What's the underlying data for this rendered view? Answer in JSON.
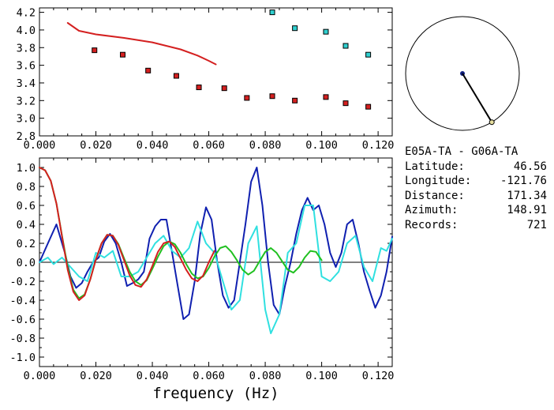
{
  "info": {
    "title": "E05A-TA - G06A-TA",
    "rows": [
      {
        "label": "Latitude:",
        "value": "46.56"
      },
      {
        "label": "Longitude:",
        "value": "-121.76"
      },
      {
        "label": "Distance:",
        "value": "171.34"
      },
      {
        "label": "Azimuth:",
        "value": "148.91"
      },
      {
        "label": "Records:",
        "value": "721"
      }
    ]
  },
  "compass": {
    "azimuth_deg": 148.91
  },
  "chart_data": [
    {
      "type": "scatter",
      "xlim": [
        0.0,
        0.125
      ],
      "ylim": [
        2.8,
        4.25
      ],
      "xticks": [
        "0.000",
        "0.020",
        "0.040",
        "0.060",
        "0.080",
        "0.100",
        "0.120"
      ],
      "yticks": [
        "2.8",
        "3.0",
        "3.2",
        "3.4",
        "3.6",
        "3.8",
        "4.0",
        "4.2"
      ],
      "series": [
        {
          "color": "#d42020",
          "kind": "points",
          "x": [
            0.0195,
            0.0295,
            0.0385,
            0.0485,
            0.0565,
            0.0655,
            0.0735,
            0.0825,
            0.0905,
            0.1015,
            0.1085,
            0.1165
          ],
          "y": [
            3.77,
            3.72,
            3.54,
            3.48,
            3.35,
            3.34,
            3.23,
            3.25,
            3.2,
            3.24,
            3.17,
            3.13
          ]
        },
        {
          "color": "#30d0d0",
          "kind": "points",
          "x": [
            0.0825,
            0.0905,
            0.1015,
            0.1085,
            0.1165
          ],
          "y": [
            4.2,
            4.02,
            3.98,
            3.82,
            3.72
          ]
        },
        {
          "color": "#d42020",
          "kind": "line",
          "x": [
            0.01,
            0.014,
            0.02,
            0.03,
            0.04,
            0.05,
            0.056,
            0.06,
            0.0625
          ],
          "y": [
            4.08,
            3.99,
            3.95,
            3.91,
            3.86,
            3.78,
            3.71,
            3.65,
            3.61
          ]
        }
      ]
    },
    {
      "type": "line",
      "xlim": [
        0.0,
        0.125
      ],
      "ylim": [
        -1.1,
        1.1
      ],
      "xlabel": "frequency (Hz)",
      "xticks": [
        "0.000",
        "0.020",
        "0.040",
        "0.060",
        "0.080",
        "0.100",
        "0.120"
      ],
      "yticks": [
        "1.0",
        "0.8",
        "0.6",
        "0.4",
        "0.2",
        "0.0",
        "-0.2",
        "-0.4",
        "-0.6",
        "-0.8",
        "-1.0"
      ],
      "series": [
        {
          "color": "#1020b0",
          "x": [
            0.0,
            0.003,
            0.006,
            0.009,
            0.011,
            0.013,
            0.015,
            0.017,
            0.019,
            0.021,
            0.023,
            0.025,
            0.027,
            0.029,
            0.031,
            0.033,
            0.035,
            0.037,
            0.039,
            0.041,
            0.043,
            0.045,
            0.047,
            0.049,
            0.051,
            0.053,
            0.055,
            0.057,
            0.059,
            0.061,
            0.063,
            0.065,
            0.067,
            0.069,
            0.071,
            0.073,
            0.075,
            0.077,
            0.079,
            0.081,
            0.083,
            0.085,
            0.087,
            0.089,
            0.091,
            0.093,
            0.095,
            0.097,
            0.099,
            0.101,
            0.103,
            0.105,
            0.107,
            0.109,
            0.111,
            0.113,
            0.115,
            0.117,
            0.119,
            0.121,
            0.123,
            0.125
          ],
          "y": [
            0.0,
            0.2,
            0.4,
            0.1,
            -0.15,
            -0.27,
            -0.22,
            -0.1,
            0.0,
            0.05,
            0.22,
            0.3,
            0.2,
            0.0,
            -0.25,
            -0.22,
            -0.18,
            -0.1,
            0.25,
            0.38,
            0.45,
            0.45,
            0.1,
            -0.25,
            -0.6,
            -0.55,
            -0.2,
            0.3,
            0.58,
            0.45,
            0.0,
            -0.35,
            -0.48,
            -0.4,
            0.0,
            0.4,
            0.85,
            1.0,
            0.6,
            0.0,
            -0.45,
            -0.55,
            -0.25,
            0.0,
            0.3,
            0.55,
            0.68,
            0.55,
            0.6,
            0.4,
            0.1,
            -0.05,
            0.1,
            0.4,
            0.45,
            0.2,
            -0.1,
            -0.3,
            -0.48,
            -0.35,
            -0.1,
            0.27
          ]
        },
        {
          "color": "#30e0e0",
          "x": [
            0.0,
            0.003,
            0.005,
            0.008,
            0.011,
            0.014,
            0.017,
            0.02,
            0.023,
            0.026,
            0.029,
            0.032,
            0.035,
            0.038,
            0.041,
            0.044,
            0.047,
            0.05,
            0.053,
            0.056,
            0.059,
            0.062,
            0.065,
            0.068,
            0.071,
            0.074,
            0.077,
            0.08,
            0.082,
            0.085,
            0.088,
            0.091,
            0.094,
            0.097,
            0.1,
            0.103,
            0.106,
            0.109,
            0.112,
            0.115,
            0.118,
            0.121,
            0.123,
            0.125
          ],
          "y": [
            0.0,
            0.05,
            -0.02,
            0.05,
            -0.05,
            -0.15,
            -0.2,
            0.1,
            0.05,
            0.12,
            -0.15,
            -0.15,
            -0.1,
            0.05,
            0.2,
            0.28,
            0.12,
            0.05,
            0.15,
            0.43,
            0.2,
            0.1,
            -0.2,
            -0.5,
            -0.4,
            0.2,
            0.38,
            -0.5,
            -0.75,
            -0.55,
            0.1,
            0.2,
            0.6,
            0.6,
            -0.15,
            -0.2,
            -0.1,
            0.2,
            0.28,
            -0.05,
            -0.2,
            0.15,
            0.12,
            0.25
          ]
        },
        {
          "color": "#20c020",
          "x": [
            0.0,
            0.002,
            0.004,
            0.006,
            0.008,
            0.01,
            0.012,
            0.014,
            0.016,
            0.018,
            0.02,
            0.022,
            0.024,
            0.026,
            0.028,
            0.03,
            0.032,
            0.034,
            0.036,
            0.038,
            0.04,
            0.042,
            0.044,
            0.046,
            0.048,
            0.05,
            0.052,
            0.054,
            0.056,
            0.058,
            0.06,
            0.062,
            0.064,
            0.066,
            0.068,
            0.07,
            0.072,
            0.074,
            0.076,
            0.078,
            0.08,
            0.082,
            0.084,
            0.086,
            0.088,
            0.09,
            0.092,
            0.094,
            0.096,
            0.098,
            0.1
          ],
          "y": [
            1.0,
            0.97,
            0.86,
            0.62,
            0.28,
            -0.05,
            -0.29,
            -0.38,
            -0.34,
            -0.18,
            0.03,
            0.2,
            0.29,
            0.28,
            0.19,
            0.04,
            -0.1,
            -0.2,
            -0.24,
            -0.19,
            -0.07,
            0.06,
            0.17,
            0.22,
            0.19,
            0.1,
            -0.02,
            -0.12,
            -0.17,
            -0.15,
            -0.06,
            0.06,
            0.15,
            0.17,
            0.11,
            0.02,
            -0.08,
            -0.13,
            -0.09,
            0.01,
            0.11,
            0.15,
            0.1,
            0.01,
            -0.08,
            -0.11,
            -0.05,
            0.05,
            0.12,
            0.11,
            0.02
          ]
        },
        {
          "color": "#d42020",
          "x": [
            0.0,
            0.002,
            0.004,
            0.006,
            0.008,
            0.01,
            0.012,
            0.014,
            0.016,
            0.018,
            0.02,
            0.022,
            0.024,
            0.026,
            0.028,
            0.03,
            0.032,
            0.034,
            0.036,
            0.038,
            0.04,
            0.042,
            0.044,
            0.046,
            0.048,
            0.05,
            0.052,
            0.054,
            0.056,
            0.058,
            0.06,
            0.062
          ],
          "y": [
            1.0,
            0.97,
            0.86,
            0.62,
            0.27,
            -0.08,
            -0.31,
            -0.4,
            -0.35,
            -0.18,
            0.03,
            0.2,
            0.29,
            0.28,
            0.18,
            0.02,
            -0.14,
            -0.24,
            -0.26,
            -0.18,
            -0.04,
            0.11,
            0.2,
            0.22,
            0.16,
            0.04,
            -0.08,
            -0.17,
            -0.2,
            -0.14,
            0.0,
            0.12
          ]
        }
      ]
    }
  ]
}
